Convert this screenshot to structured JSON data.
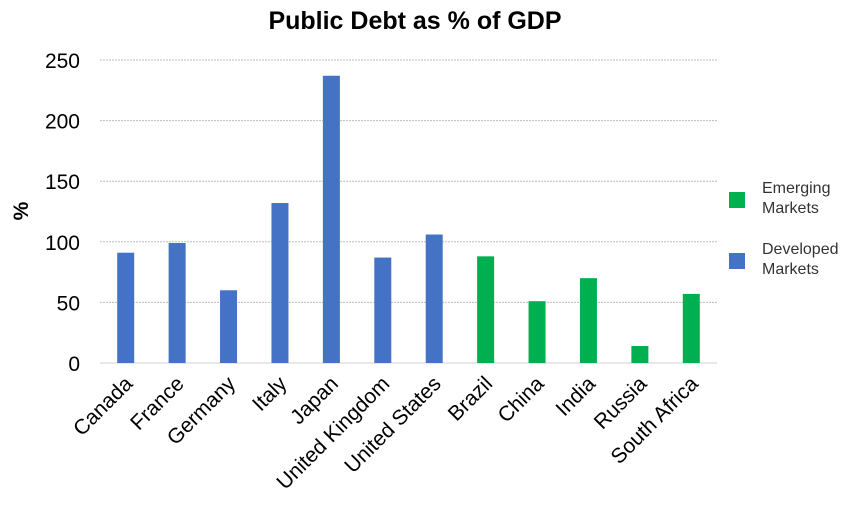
{
  "chart_data": {
    "type": "bar",
    "title": "Public Debt as %  of GDP",
    "ylabel": "%",
    "xlabel": "",
    "ylim": [
      0,
      250
    ],
    "yticks": [
      0,
      50,
      100,
      150,
      200,
      250
    ],
    "grid": true,
    "legend_position": "right",
    "categories": [
      "Canada",
      "France",
      "Germany",
      "Italy",
      "Japan",
      "United Kingdom",
      "United States",
      "Brazil",
      "China",
      "India",
      "Russia",
      "South Africa"
    ],
    "series": [
      {
        "name": "Emerging Markets",
        "color": "#00b050",
        "values": [
          null,
          null,
          null,
          null,
          null,
          null,
          null,
          88,
          51,
          70,
          14,
          57
        ]
      },
      {
        "name": "Developed Markets",
        "color": "#4472c4",
        "values": [
          91,
          99,
          60,
          132,
          237,
          87,
          106,
          null,
          null,
          null,
          null,
          null
        ]
      }
    ]
  }
}
